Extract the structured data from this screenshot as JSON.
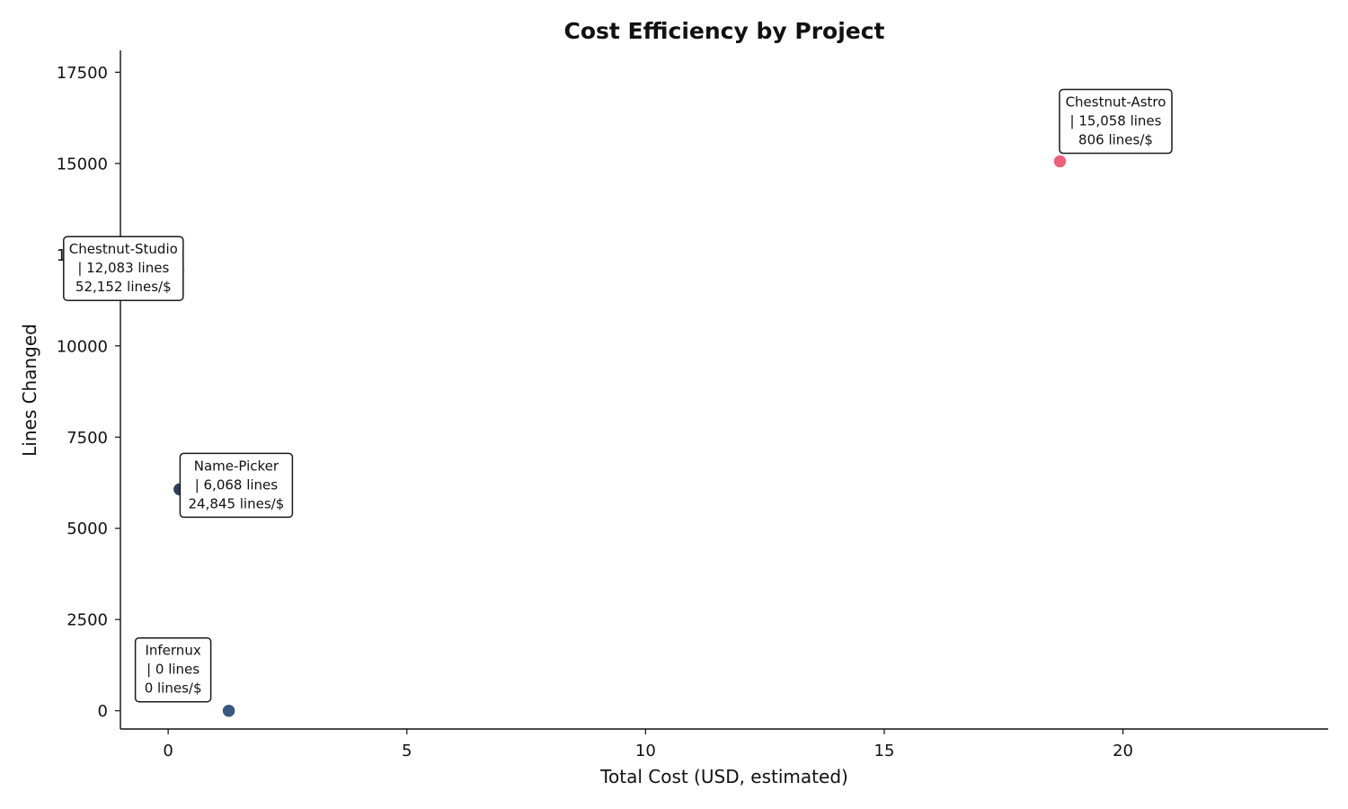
{
  "chart_data": {
    "type": "scatter",
    "title": "Cost Efficiency by Project",
    "xlabel": "Total Cost (USD, estimated)",
    "ylabel": "Lines Changed",
    "xlim": [
      -1,
      24.3
    ],
    "ylim": [
      -500,
      18100
    ],
    "xticks": [
      0,
      5,
      10,
      15,
      20
    ],
    "yticks": [
      0,
      2500,
      5000,
      7500,
      10000,
      12500,
      15000,
      17500
    ],
    "grid": false,
    "legend": "none",
    "points": [
      {
        "name": "Chestnut-Astro",
        "x": 18.68,
        "y": 15058,
        "color": "#f0607a",
        "label_lines": [
          "Chestnut-Astro",
          "| 15,058 lines",
          "806 lines/$"
        ],
        "label_anchor": "above-right"
      },
      {
        "name": "Chestnut-Studio",
        "x": 0.23,
        "y": 12083,
        "color": "#ececec",
        "label_lines": [
          "Chestnut-Studio",
          "| 12,083 lines",
          "52,152 lines/$"
        ],
        "label_anchor": "left"
      },
      {
        "name": "Name-Picker",
        "x": 0.24,
        "y": 6068,
        "color": "#2d3f5c",
        "label_lines": [
          "Name-Picker",
          "| 6,068 lines",
          "24,845 lines/$"
        ],
        "label_anchor": "right"
      },
      {
        "name": "Infernux",
        "x": 1.27,
        "y": 0,
        "color": "#3a5780",
        "label_lines": [
          "Infernux",
          "| 0 lines",
          "0 lines/$"
        ],
        "label_anchor": "above-left"
      }
    ]
  }
}
